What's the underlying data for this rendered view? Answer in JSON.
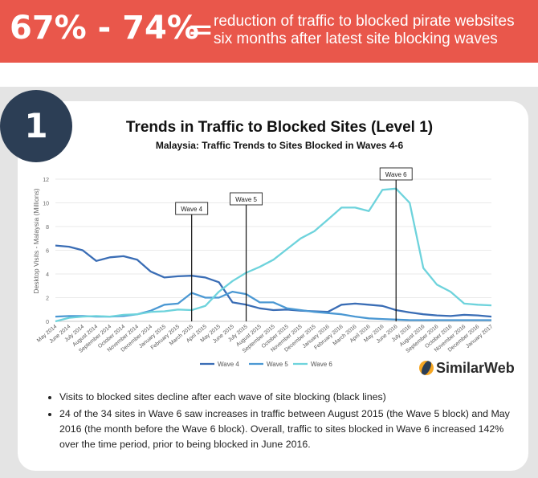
{
  "banner": {
    "headline": "67% - 74%",
    "equals": "=",
    "line1": "reduction of traffic to blocked pirate websites",
    "line2": "six months after latest site blocking waves"
  },
  "section_number": "1",
  "logo_text": "SimilarWeb",
  "bullets": [
    "Visits to blocked sites decline after each wave of site blocking (black lines)",
    "24 of the 34 sites in Wave 6 saw increases in traffic between August 2015 (the Wave 5 block) and May 2016 (the month before the Wave 6 block). Overall, traffic to sites blocked in Wave 6 increased 142% over the time period, prior to being blocked in June 2016."
  ],
  "colors": {
    "banner": "#e9574b",
    "wave4": "#3a6db5",
    "wave5": "#4b98d3",
    "wave6": "#6ed3dc",
    "circle": "#2c3e55"
  },
  "chart_data": {
    "type": "line",
    "title": "Trends in Traffic to Blocked Sites (Level 1)",
    "subtitle": "Malaysia: Traffic Trends to Sites Blocked in Waves 4-6",
    "ylabel": "Desktop Visits - Malaysia (Millions)",
    "xlabel": "",
    "ylim": [
      0,
      12
    ],
    "yticks": [
      0,
      2,
      4,
      6,
      8,
      10,
      12
    ],
    "legend_position": "bottom",
    "categories": [
      "May 2014",
      "June 2014",
      "July 2014",
      "August 2014",
      "September 2014",
      "October 2014",
      "November 2014",
      "December 2014",
      "January 2015",
      "February 2015",
      "March 2015",
      "April 2015",
      "May 2015",
      "June 2015",
      "July 2015",
      "August 2015",
      "September 2015",
      "October 2015",
      "November 2015",
      "December 2015",
      "January 2016",
      "February 2016",
      "March 2016",
      "April 2016",
      "May 2016",
      "June 2016",
      "July 2016",
      "August 2016",
      "September 2016",
      "October 2016",
      "November 2016",
      "December 2016",
      "January 2017"
    ],
    "series": [
      {
        "name": "Wave 4",
        "values": [
          6.4,
          6.3,
          6.0,
          5.1,
          5.4,
          5.5,
          5.2,
          4.2,
          3.7,
          3.8,
          3.85,
          3.7,
          3.3,
          1.6,
          1.4,
          1.1,
          0.95,
          1.0,
          0.9,
          0.85,
          0.8,
          1.4,
          1.5,
          1.4,
          1.3,
          0.95,
          0.75,
          0.6,
          0.5,
          0.45,
          0.55,
          0.5,
          0.4
        ]
      },
      {
        "name": "Wave 5",
        "values": [
          0.4,
          0.45,
          0.45,
          0.4,
          0.4,
          0.45,
          0.6,
          0.9,
          1.4,
          1.5,
          2.4,
          2.0,
          2.0,
          2.5,
          2.3,
          1.6,
          1.6,
          1.1,
          0.95,
          0.8,
          0.7,
          0.6,
          0.4,
          0.25,
          0.2,
          0.15,
          0.1,
          0.1,
          0.1,
          0.1,
          0.1,
          0.1,
          0.1
        ]
      },
      {
        "name": "Wave 6",
        "values": [
          0.0,
          0.3,
          0.4,
          0.45,
          0.4,
          0.55,
          0.6,
          0.8,
          0.85,
          1.0,
          0.95,
          1.3,
          2.5,
          3.4,
          4.1,
          4.6,
          5.2,
          6.1,
          7.0,
          7.6,
          8.6,
          9.6,
          9.6,
          9.3,
          11.1,
          11.2,
          10.0,
          4.5,
          3.1,
          2.5,
          1.5,
          1.4,
          1.35
        ]
      }
    ],
    "annotations": [
      {
        "label": "Wave 4",
        "x": "March 2015"
      },
      {
        "label": "Wave 5",
        "x": "July 2015"
      },
      {
        "label": "Wave 6",
        "x": "June 2016"
      }
    ]
  }
}
